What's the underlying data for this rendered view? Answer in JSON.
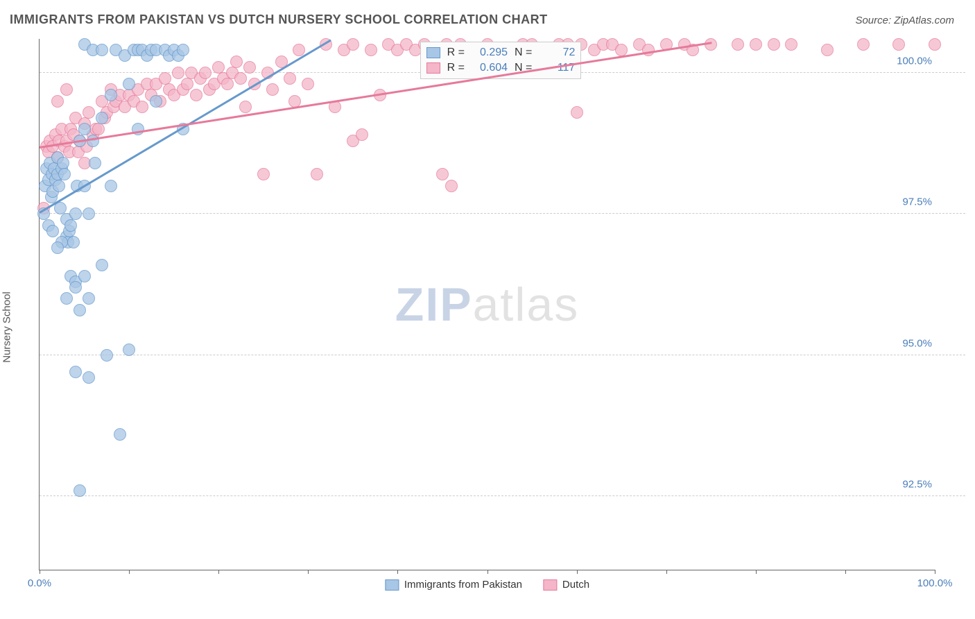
{
  "header": {
    "title": "IMMIGRANTS FROM PAKISTAN VS DUTCH NURSERY SCHOOL CORRELATION CHART",
    "source": "Source: ZipAtlas.com"
  },
  "watermark": {
    "part1": "ZIP",
    "part2": "atlas"
  },
  "chart": {
    "type": "scatter",
    "y_axis_label": "Nursery School",
    "background_color": "#ffffff",
    "grid_color": "#cccccc",
    "axis_color": "#666666",
    "xlim": [
      0,
      100
    ],
    "ylim": [
      91.2,
      100.6
    ],
    "x_ticks": [
      0,
      10,
      20,
      30,
      40,
      50,
      60,
      70,
      80,
      90,
      100
    ],
    "x_tick_labels": {
      "0": "0.0%",
      "100": "100.0%"
    },
    "y_ticks": [
      92.5,
      95.0,
      97.5,
      100.0
    ],
    "y_tick_labels": {
      "92.5": "92.5%",
      "95.0": "95.0%",
      "97.5": "97.5%",
      "100.0": "100.0%"
    },
    "marker_radius": 9,
    "marker_stroke_width": 1.5,
    "marker_fill_opacity": 0.28,
    "series": [
      {
        "key": "pakistan",
        "label": "Immigrants from Pakistan",
        "color_stroke": "#6699cc",
        "color_fill": "#a8c6e5",
        "R": "0.295",
        "N": "72",
        "trend": {
          "x1": 0,
          "y1": 97.55,
          "x2": 32.5,
          "y2": 100.6
        },
        "points": [
          [
            0.5,
            97.5
          ],
          [
            0.6,
            98.0
          ],
          [
            0.8,
            98.3
          ],
          [
            1.0,
            97.3
          ],
          [
            1.0,
            98.1
          ],
          [
            1.2,
            98.4
          ],
          [
            1.3,
            97.8
          ],
          [
            1.4,
            98.2
          ],
          [
            1.5,
            97.9
          ],
          [
            1.6,
            98.3
          ],
          [
            1.8,
            98.1
          ],
          [
            2.0,
            98.2
          ],
          [
            2.0,
            98.5
          ],
          [
            2.2,
            98.0
          ],
          [
            2.3,
            97.6
          ],
          [
            2.5,
            98.3
          ],
          [
            2.6,
            98.4
          ],
          [
            2.8,
            98.2
          ],
          [
            3.0,
            97.1
          ],
          [
            3.0,
            97.4
          ],
          [
            3.2,
            97.0
          ],
          [
            3.3,
            97.2
          ],
          [
            3.5,
            97.3
          ],
          [
            3.5,
            96.4
          ],
          [
            3.8,
            97.0
          ],
          [
            4.0,
            96.3
          ],
          [
            4.0,
            97.5
          ],
          [
            4.2,
            98.0
          ],
          [
            4.5,
            95.8
          ],
          [
            4.5,
            92.6
          ],
          [
            5.0,
            98.0
          ],
          [
            5.0,
            99.0
          ],
          [
            5.0,
            100.5
          ],
          [
            5.5,
            94.6
          ],
          [
            5.5,
            97.5
          ],
          [
            6.0,
            100.4
          ],
          [
            6.0,
            98.8
          ],
          [
            6.2,
            98.4
          ],
          [
            7.0,
            100.4
          ],
          [
            7.0,
            99.2
          ],
          [
            7.5,
            95.0
          ],
          [
            8.0,
            99.6
          ],
          [
            8.0,
            98.0
          ],
          [
            8.5,
            100.4
          ],
          [
            9.0,
            93.6
          ],
          [
            9.5,
            100.3
          ],
          [
            10.0,
            99.8
          ],
          [
            10.0,
            95.1
          ],
          [
            10.5,
            100.4
          ],
          [
            11.0,
            100.4
          ],
          [
            11.0,
            99.0
          ],
          [
            11.5,
            100.4
          ],
          [
            12.0,
            100.3
          ],
          [
            12.5,
            100.4
          ],
          [
            13.0,
            99.5
          ],
          [
            13.0,
            100.4
          ],
          [
            14.0,
            100.4
          ],
          [
            14.5,
            100.3
          ],
          [
            15.0,
            100.4
          ],
          [
            15.5,
            100.3
          ],
          [
            16.0,
            100.4
          ],
          [
            16.0,
            99.0
          ],
          [
            4.0,
            94.7
          ],
          [
            5.0,
            96.4
          ],
          [
            4.0,
            96.2
          ],
          [
            4.5,
            98.8
          ],
          [
            2.5,
            97.0
          ],
          [
            2.0,
            96.9
          ],
          [
            1.5,
            97.2
          ],
          [
            3.0,
            96.0
          ],
          [
            5.5,
            96.0
          ],
          [
            7.0,
            96.6
          ]
        ]
      },
      {
        "key": "dutch",
        "label": "Dutch",
        "color_stroke": "#e67a9b",
        "color_fill": "#f4b6c8",
        "R": "0.604",
        "N": "117",
        "trend": {
          "x1": 0,
          "y1": 98.7,
          "x2": 75,
          "y2": 100.55
        },
        "points": [
          [
            0.5,
            97.6
          ],
          [
            0.8,
            98.7
          ],
          [
            1.0,
            98.6
          ],
          [
            1.2,
            98.8
          ],
          [
            1.5,
            98.7
          ],
          [
            1.8,
            98.9
          ],
          [
            2.0,
            98.5
          ],
          [
            2.2,
            98.8
          ],
          [
            2.5,
            99.0
          ],
          [
            2.8,
            98.7
          ],
          [
            3.0,
            98.8
          ],
          [
            3.3,
            98.6
          ],
          [
            3.5,
            99.0
          ],
          [
            3.8,
            98.9
          ],
          [
            4.0,
            99.2
          ],
          [
            4.3,
            98.6
          ],
          [
            4.5,
            98.8
          ],
          [
            5.0,
            99.1
          ],
          [
            5.3,
            98.7
          ],
          [
            5.5,
            99.3
          ],
          [
            6.0,
            98.9
          ],
          [
            6.3,
            99.0
          ],
          [
            6.6,
            99.0
          ],
          [
            7.0,
            99.5
          ],
          [
            7.3,
            99.2
          ],
          [
            7.5,
            99.3
          ],
          [
            8.0,
            99.7
          ],
          [
            8.3,
            99.4
          ],
          [
            8.5,
            99.5
          ],
          [
            9.0,
            99.6
          ],
          [
            9.5,
            99.4
          ],
          [
            10.0,
            99.6
          ],
          [
            10.5,
            99.5
          ],
          [
            11.0,
            99.7
          ],
          [
            11.5,
            99.4
          ],
          [
            12.0,
            99.8
          ],
          [
            12.5,
            99.6
          ],
          [
            13.0,
            99.8
          ],
          [
            13.5,
            99.5
          ],
          [
            14.0,
            99.9
          ],
          [
            14.5,
            99.7
          ],
          [
            15.0,
            99.6
          ],
          [
            15.5,
            100.0
          ],
          [
            16.0,
            99.7
          ],
          [
            16.5,
            99.8
          ],
          [
            17.0,
            100.0
          ],
          [
            17.5,
            99.6
          ],
          [
            18.0,
            99.9
          ],
          [
            18.5,
            100.0
          ],
          [
            19.0,
            99.7
          ],
          [
            19.5,
            99.8
          ],
          [
            20.0,
            100.1
          ],
          [
            20.5,
            99.9
          ],
          [
            21.0,
            99.8
          ],
          [
            21.5,
            100.0
          ],
          [
            22.0,
            100.2
          ],
          [
            22.5,
            99.9
          ],
          [
            23.0,
            99.4
          ],
          [
            23.5,
            100.1
          ],
          [
            24.0,
            99.8
          ],
          [
            25.0,
            98.2
          ],
          [
            25.5,
            100.0
          ],
          [
            26.0,
            99.7
          ],
          [
            27.0,
            100.2
          ],
          [
            28.0,
            99.9
          ],
          [
            28.5,
            99.5
          ],
          [
            29.0,
            100.4
          ],
          [
            30.0,
            99.8
          ],
          [
            31.0,
            98.2
          ],
          [
            32.0,
            100.5
          ],
          [
            33.0,
            99.4
          ],
          [
            34.0,
            100.4
          ],
          [
            35.0,
            98.8
          ],
          [
            35.0,
            100.5
          ],
          [
            36.0,
            98.9
          ],
          [
            37.0,
            100.4
          ],
          [
            38.0,
            99.6
          ],
          [
            39.0,
            100.5
          ],
          [
            40.0,
            100.4
          ],
          [
            41.0,
            100.5
          ],
          [
            42.0,
            100.4
          ],
          [
            43.0,
            100.5
          ],
          [
            44.0,
            100.4
          ],
          [
            45.0,
            98.2
          ],
          [
            45.5,
            100.5
          ],
          [
            46.0,
            98.0
          ],
          [
            47.0,
            100.5
          ],
          [
            48.0,
            100.4
          ],
          [
            50.0,
            100.5
          ],
          [
            52.0,
            100.4
          ],
          [
            54.0,
            100.5
          ],
          [
            55.0,
            100.5
          ],
          [
            57.0,
            100.4
          ],
          [
            58.0,
            100.5
          ],
          [
            59.0,
            100.5
          ],
          [
            60.0,
            99.3
          ],
          [
            60.5,
            100.5
          ],
          [
            62.0,
            100.4
          ],
          [
            63.0,
            100.5
          ],
          [
            64.0,
            100.5
          ],
          [
            65.0,
            100.4
          ],
          [
            67.0,
            100.5
          ],
          [
            68.0,
            100.4
          ],
          [
            70.0,
            100.5
          ],
          [
            72.0,
            100.5
          ],
          [
            73.0,
            100.4
          ],
          [
            75.0,
            100.5
          ],
          [
            78.0,
            100.5
          ],
          [
            80.0,
            100.5
          ],
          [
            82.0,
            100.5
          ],
          [
            84.0,
            100.5
          ],
          [
            88.0,
            100.4
          ],
          [
            92.0,
            100.5
          ],
          [
            96.0,
            100.5
          ],
          [
            100.0,
            100.5
          ],
          [
            2.0,
            99.5
          ],
          [
            3.0,
            99.7
          ],
          [
            5.0,
            98.4
          ]
        ]
      }
    ],
    "legend_box": {
      "left_pct": 42.5,
      "top_pct": 0.5
    }
  }
}
